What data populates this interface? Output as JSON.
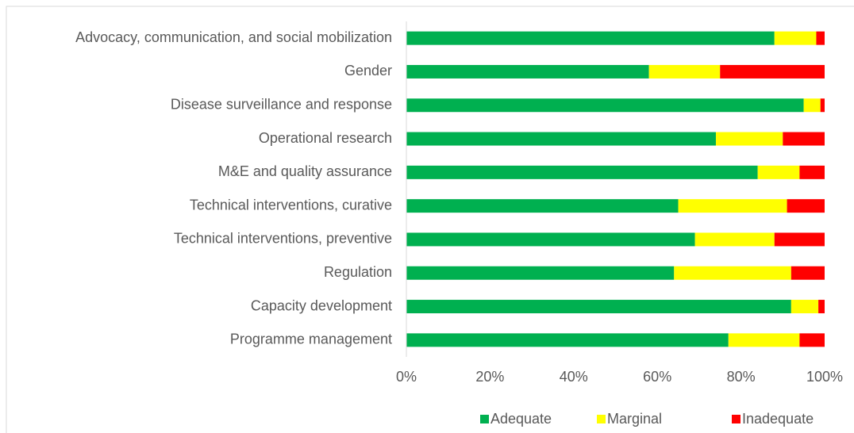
{
  "chart_data": {
    "type": "stacked_barh",
    "categories": [
      "Advocacy, communication, and social mobilization",
      "Gender",
      "Disease surveillance and response",
      "Operational research",
      "M&E and quality assurance",
      "Technical interventions, curative",
      "Technical interventions, preventive",
      "Regulation",
      "Capacity development",
      "Programme management"
    ],
    "series": [
      {
        "name": "Adequate",
        "color": "#00b050",
        "values": [
          88,
          58,
          95,
          74,
          84,
          65,
          69,
          64,
          92,
          77
        ]
      },
      {
        "name": "Marginal",
        "color": "#ffff00",
        "values": [
          10,
          17,
          4,
          16,
          10,
          26,
          19,
          28,
          6.5,
          17
        ]
      },
      {
        "name": "Inadequate",
        "color": "#ff0000",
        "values": [
          2,
          25,
          1,
          10,
          6,
          9,
          12,
          8,
          1.5,
          6
        ]
      }
    ],
    "xlim": [
      0,
      100
    ],
    "xticks": [
      {
        "value": 0,
        "label": "0%"
      },
      {
        "value": 20,
        "label": "20%"
      },
      {
        "value": 40,
        "label": "40%"
      },
      {
        "value": 60,
        "label": "60%"
      },
      {
        "value": 80,
        "label": "80%"
      },
      {
        "value": 100,
        "label": "100%"
      }
    ],
    "grid": false,
    "legend": "bottom"
  }
}
